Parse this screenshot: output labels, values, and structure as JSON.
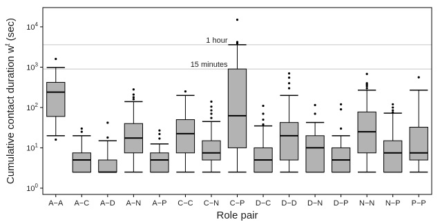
{
  "chart_data": {
    "type": "boxplot",
    "xlabel": "Role pair",
    "ylabel": "Cumulative contact duration w",
    "ylabel_superscript": "t",
    "ylabel_unit": "(sec)",
    "y_scale": "log10",
    "ylim": [
      0.7,
      30000
    ],
    "y_ticks": [
      {
        "value": 1,
        "base": "10",
        "exp": "0"
      },
      {
        "value": 10,
        "base": "10",
        "exp": "1"
      },
      {
        "value": 100,
        "base": "10",
        "exp": "2"
      },
      {
        "value": 1000,
        "base": "10",
        "exp": "3"
      },
      {
        "value": 10000,
        "base": "10",
        "exp": "4"
      }
    ],
    "reference_lines": [
      {
        "value": 3600,
        "label": "1 hour"
      },
      {
        "value": 900,
        "label": "15 minutes"
      }
    ],
    "categories": [
      "A−A",
      "A−C",
      "A−D",
      "A−N",
      "A−P",
      "C−C",
      "C−N",
      "C−P",
      "D−C",
      "D−D",
      "D−N",
      "D−P",
      "N−N",
      "N−P",
      "P−P"
    ],
    "boxes": [
      {
        "whisker_low": 20,
        "q1": 60,
        "median": 240,
        "q3": 420,
        "whisker_high": 980,
        "outliers": [
          1600,
          16
        ]
      },
      {
        "whisker_low": 2.5,
        "q1": 2.5,
        "median": 5,
        "q3": 7.5,
        "whisker_high": 20,
        "outliers": [
          25,
          30
        ]
      },
      {
        "whisker_low": 2.5,
        "q1": 2.5,
        "median": 2.5,
        "q3": 5,
        "whisker_high": 15,
        "outliers": [
          18,
          42
        ]
      },
      {
        "whisker_low": 2.5,
        "q1": 7.5,
        "median": 17.5,
        "q3": 40,
        "whisker_high": 140,
        "outliers": [
          160,
          180,
          210,
          280
        ]
      },
      {
        "whisker_low": 2.5,
        "q1": 2.5,
        "median": 5,
        "q3": 7.5,
        "whisker_high": 12.5,
        "outliers": [
          17,
          22,
          27
        ]
      },
      {
        "whisker_low": 2.5,
        "q1": 7.5,
        "median": 22.5,
        "q3": 50,
        "whisker_high": 200,
        "outliers": [
          250
        ]
      },
      {
        "whisker_low": 2.5,
        "q1": 5,
        "median": 7.5,
        "q3": 15,
        "whisker_high": 45,
        "outliers": [
          55,
          70,
          85,
          105,
          140
        ]
      },
      {
        "whisker_low": 2.5,
        "q1": 10,
        "median": 62.5,
        "q3": 900,
        "whisker_high": 3600,
        "outliers": [
          3900,
          4200,
          15000
        ]
      },
      {
        "whisker_low": 2.5,
        "q1": 2.5,
        "median": 5,
        "q3": 10,
        "whisker_high": 35,
        "outliers": [
          38,
          50,
          70,
          110
        ]
      },
      {
        "whisker_low": 2.5,
        "q1": 5,
        "median": 20,
        "q3": 42.5,
        "whisker_high": 200,
        "outliers": [
          300,
          400,
          550,
          700
        ]
      },
      {
        "whisker_low": 2.5,
        "q1": 2.5,
        "median": 10,
        "q3": 20,
        "whisker_high": 42.5,
        "outliers": [
          70,
          115
        ]
      },
      {
        "whisker_low": 2.5,
        "q1": 2.5,
        "median": 5,
        "q3": 10,
        "whisker_high": 20,
        "outliers": [
          30,
          90,
          120
        ]
      },
      {
        "whisker_low": 2.5,
        "q1": 7.5,
        "median": 25,
        "q3": 77.5,
        "whisker_high": 270,
        "outliers": [
          300,
          340,
          370,
          400,
          680
        ]
      },
      {
        "whisker_low": 2.5,
        "q1": 2.5,
        "median": 7.5,
        "q3": 15,
        "whisker_high": 72.5,
        "outliers": [
          75,
          85,
          100,
          120
        ]
      },
      {
        "whisker_low": 2.5,
        "q1": 5,
        "median": 7.5,
        "q3": 32.5,
        "whisker_high": 270,
        "outliers": [
          560
        ]
      }
    ],
    "colors": {
      "box_fill": "#b3b3b3",
      "line": "#000000",
      "reference_line": "#c8c8c8"
    },
    "grid": false,
    "legend": false
  }
}
